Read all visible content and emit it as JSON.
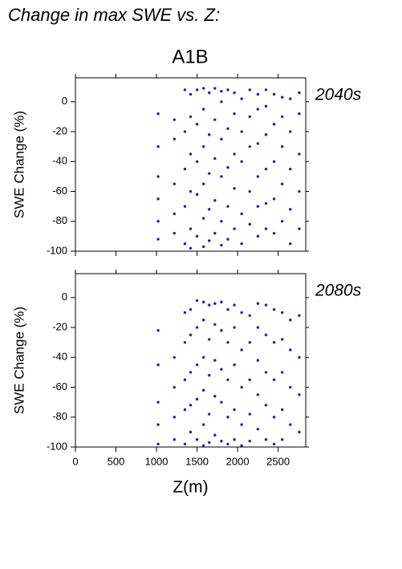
{
  "header": {
    "title": "Change in max SWE vs. Z:",
    "scenario": "A1B"
  },
  "chart_data": [
    {
      "type": "scatter",
      "label": "2040s",
      "ylabel": "SWE Change (%)",
      "color": "#1f1fb8",
      "xlim": [
        0,
        2840
      ],
      "xticks": [
        0,
        500,
        1000,
        1500,
        2000,
        2500
      ],
      "ylim": [
        -100,
        16
      ],
      "yticks": [
        -100,
        -80,
        -60,
        -40,
        -20,
        0
      ],
      "x": [
        1020,
        1020,
        1020,
        1020,
        1020,
        1020,
        1220,
        1220,
        1220,
        1220,
        1220,
        1350,
        1350,
        1350,
        1350,
        1350,
        1420,
        1420,
        1420,
        1420,
        1420,
        1420,
        1500,
        1500,
        1500,
        1500,
        1500,
        1580,
        1580,
        1580,
        1580,
        1580,
        1580,
        1650,
        1650,
        1650,
        1650,
        1650,
        1720,
        1720,
        1720,
        1720,
        1720,
        1800,
        1800,
        1800,
        1800,
        1800,
        1800,
        1880,
        1880,
        1880,
        1880,
        1880,
        1960,
        1960,
        1960,
        1960,
        1960,
        2050,
        2050,
        2050,
        2050,
        2050,
        2150,
        2150,
        2150,
        2150,
        2150,
        2250,
        2250,
        2250,
        2250,
        2250,
        2250,
        2350,
        2350,
        2350,
        2350,
        2350,
        2350,
        2450,
        2450,
        2450,
        2450,
        2450,
        2550,
        2550,
        2550,
        2550,
        2550,
        2650,
        2650,
        2650,
        2650,
        2650,
        2760,
        2760,
        2760,
        2760,
        2760
      ],
      "values": [
        -8,
        -30,
        -50,
        -65,
        -80,
        -92,
        -12,
        -25,
        -55,
        -75,
        -88,
        8,
        -20,
        -45,
        -70,
        -95,
        5,
        -10,
        -35,
        -60,
        -85,
        -98,
        8,
        -15,
        -40,
        -62,
        -90,
        9,
        -5,
        -30,
        -55,
        -78,
        -97,
        6,
        -22,
        -48,
        -72,
        -93,
        9,
        -12,
        -38,
        -66,
        -88,
        7,
        0,
        -25,
        -50,
        -80,
        -96,
        8,
        -18,
        -44,
        -70,
        -92,
        6,
        -8,
        -35,
        -58,
        -85,
        2,
        -20,
        -40,
        -75,
        -95,
        8,
        -10,
        -30,
        -60,
        -82,
        5,
        -5,
        -28,
        -50,
        -70,
        -90,
        8,
        -3,
        -22,
        -45,
        -68,
        -85,
        5,
        -15,
        -40,
        -65,
        -88,
        3,
        -10,
        -30,
        -55,
        -80,
        2,
        -20,
        -45,
        -72,
        -95,
        6,
        -8,
        -35,
        -60,
        -85
      ]
    },
    {
      "type": "scatter",
      "label": "2080s",
      "ylabel": "SWE Change (%)",
      "xlabel": "Z(m)",
      "color": "#1f1fb8",
      "xlim": [
        0,
        2840
      ],
      "xticks": [
        0,
        500,
        1000,
        1500,
        2000,
        2500
      ],
      "ylim": [
        -100,
        16
      ],
      "yticks": [
        -100,
        -80,
        -60,
        -40,
        -20,
        0
      ],
      "x": [
        1020,
        1020,
        1020,
        1020,
        1020,
        1220,
        1220,
        1220,
        1220,
        1350,
        1350,
        1350,
        1350,
        1350,
        1420,
        1420,
        1420,
        1420,
        1420,
        1500,
        1500,
        1500,
        1500,
        1500,
        1580,
        1580,
        1580,
        1580,
        1580,
        1580,
        1650,
        1650,
        1650,
        1650,
        1650,
        1720,
        1720,
        1720,
        1720,
        1720,
        1800,
        1800,
        1800,
        1800,
        1800,
        1880,
        1880,
        1880,
        1880,
        1880,
        1960,
        1960,
        1960,
        1960,
        1960,
        2050,
        2050,
        2050,
        2050,
        2050,
        2150,
        2150,
        2150,
        2150,
        2150,
        2250,
        2250,
        2250,
        2250,
        2250,
        2350,
        2350,
        2350,
        2350,
        2350,
        2450,
        2450,
        2450,
        2450,
        2450,
        2550,
        2550,
        2550,
        2550,
        2550,
        2650,
        2650,
        2650,
        2650,
        2760,
        2760,
        2760,
        2760
      ],
      "values": [
        -22,
        -45,
        -70,
        -85,
        -98,
        -40,
        -60,
        -80,
        -95,
        -10,
        -30,
        -55,
        -75,
        -98,
        -8,
        -25,
        -50,
        -72,
        -90,
        -2,
        -20,
        -45,
        -68,
        -95,
        -3,
        -15,
        -40,
        -62,
        -85,
        -99,
        -5,
        -28,
        -52,
        -78,
        -97,
        -4,
        -18,
        -42,
        -66,
        -92,
        -3,
        -22,
        -48,
        -70,
        -96,
        -8,
        -30,
        -55,
        -80,
        -98,
        -5,
        -20,
        -45,
        -75,
        -95,
        -10,
        -35,
        -60,
        -85,
        -99,
        -12,
        -30,
        -55,
        -78,
        -96,
        -4,
        -20,
        -42,
        -65,
        -88,
        -5,
        -25,
        -50,
        -72,
        -95,
        -8,
        -30,
        -55,
        -80,
        -98,
        -10,
        -28,
        -50,
        -75,
        -95,
        -15,
        -35,
        -60,
        -85,
        -12,
        -40,
        -65,
        -90
      ]
    }
  ]
}
